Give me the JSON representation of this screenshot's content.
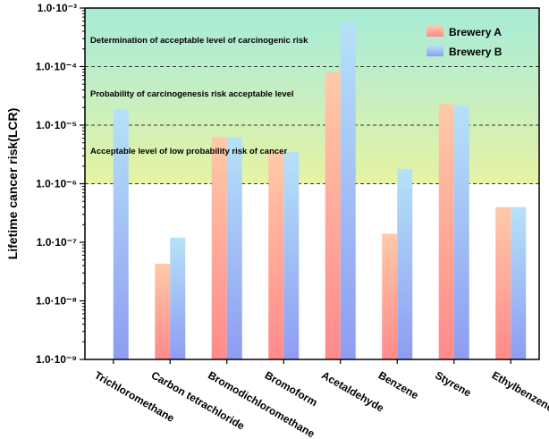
{
  "chart_data": {
    "type": "bar",
    "title": "",
    "xlabel": "",
    "ylabel": "Lifetime cancer risk(LCR)",
    "yscale": "log",
    "ylim": [
      1e-09,
      0.001
    ],
    "ytick_labels": [
      "1.0·10⁻⁹",
      "1.0·10⁻⁸",
      "1.0·10⁻⁷",
      "1.0·10⁻⁶",
      "1.0·10⁻⁵",
      "1.0·10⁻⁴",
      "1.0·10⁻³"
    ],
    "categories": [
      "Trichloromethane",
      "Carbon tetrachloride",
      "Bromodichloromethane",
      "Bromoform",
      "Acetaldehyde",
      "Benzene",
      "Styrene",
      "Ethylbenzene"
    ],
    "series": [
      {
        "name": "Brewery A",
        "values": [
          null,
          4.3e-08,
          6.2e-06,
          3.5e-06,
          8e-05,
          1.4e-07,
          2.3e-05,
          4e-07
        ]
      },
      {
        "name": "Brewery B",
        "values": [
          1.9e-05,
          1.2e-07,
          6.2e-06,
          3.5e-06,
          0.00058,
          1.8e-06,
          2.2e-05,
          4e-07
        ]
      }
    ],
    "zones": [
      {
        "label": "Determination of acceptable level of carcinogenic risk",
        "from": 0.0001,
        "to": 0.001
      },
      {
        "label": "Probability of carcinogenesis risk acceptable level",
        "from": 1e-05,
        "to": 0.0001
      },
      {
        "label": "Acceptable level of low probability risk of cancer",
        "from": 1e-06,
        "to": 1e-05
      }
    ],
    "threshold_lines": [
      0.0001,
      1e-05,
      1e-06
    ],
    "legend_position": "top-right"
  },
  "colors": {
    "seriesA_top": "#ffc9a8",
    "seriesA_bottom": "#ff8a8a",
    "seriesB_top": "#b6e2f8",
    "seriesB_bottom": "#8e9cf2",
    "zone_top": "#a6ecd6",
    "zone_mid_top": "#c3eec4",
    "zone_bottom": "#e6f3a2"
  }
}
